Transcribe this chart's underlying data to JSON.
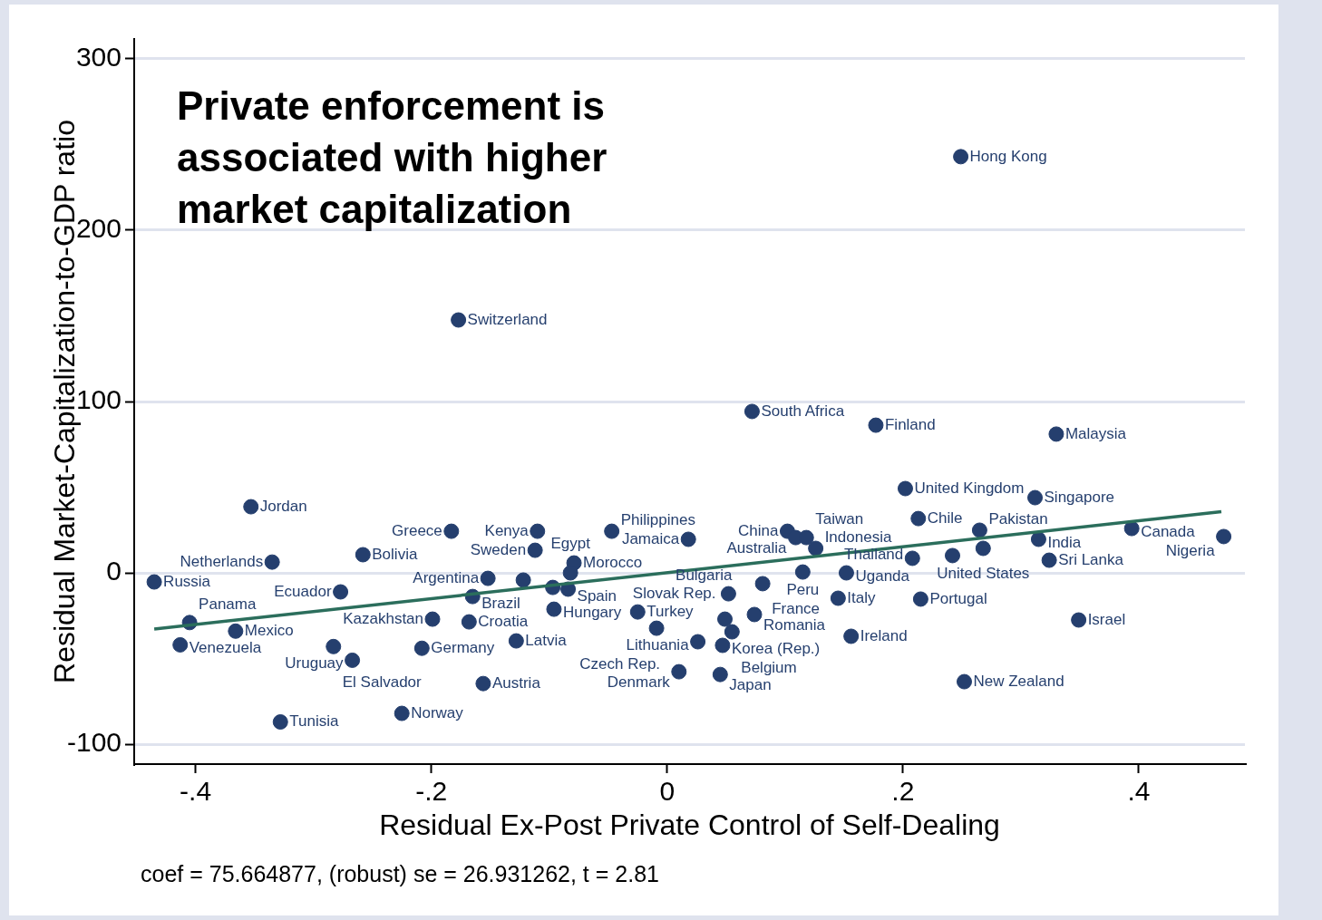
{
  "chart_data": {
    "type": "scatter",
    "title": "Private enforcement is associated with higher market capitalization",
    "xlabel": "Residual Ex-Post Private Control of Self-Dealing",
    "ylabel": "Residual Market-Capitalization-to-GDP ratio",
    "xlim": [
      -0.452,
      0.49
    ],
    "ylim": [
      -111.6,
      311.6
    ],
    "xticks": [
      {
        "value": -0.4,
        "label": "-.4"
      },
      {
        "value": -0.2,
        "label": "-.2"
      },
      0,
      {
        "value": 0.2,
        "label": ".2"
      },
      {
        "value": 0.4,
        "label": ".4"
      }
    ],
    "yticks": [
      -100,
      0,
      100,
      200,
      300
    ],
    "grid": "y",
    "legend": false,
    "series": [
      {
        "type": "scatter",
        "marker": "circle",
        "color": "#253f6e",
        "x": [
          -0.435,
          -0.353,
          -0.335,
          -0.258,
          -0.277,
          -0.405,
          -0.366,
          -0.413,
          -0.283,
          -0.267,
          -0.208,
          -0.328,
          -0.225,
          -0.183,
          -0.177,
          -0.11,
          -0.047,
          -0.112,
          -0.079,
          -0.082,
          -0.084,
          -0.152,
          -0.122,
          -0.097,
          -0.165,
          -0.199,
          -0.168,
          -0.128,
          -0.156,
          -0.096,
          -0.025,
          -0.009,
          0.018,
          0.102,
          0.109,
          0.118,
          0.126,
          0.115,
          0.152,
          0.081,
          0.052,
          0.145,
          0.215,
          0.074,
          0.049,
          0.055,
          0.026,
          0.047,
          0.156,
          0.01,
          0.045,
          0.072,
          0.177,
          0.249,
          0.33,
          0.202,
          0.312,
          0.213,
          0.265,
          0.315,
          0.268,
          0.208,
          0.242,
          0.324,
          0.394,
          0.472,
          0.349,
          0.252
        ],
        "values": [
          -5.3,
          38.6,
          6.3,
          10.6,
          -11.1,
          -29,
          -34,
          -42,
          -43,
          -51,
          -44,
          -87,
          -82,
          24.3,
          147.6,
          24.3,
          24.3,
          13.2,
          5.8,
          0,
          -9.5,
          -3.2,
          -4.2,
          -8.5,
          -13.8,
          -27,
          -28.6,
          -39.7,
          -64.6,
          -21.2,
          -22.8,
          -32.3,
          19.6,
          24.3,
          20.6,
          20.6,
          14.3,
          0.5,
          0,
          -6.3,
          -12.2,
          -14.8,
          -15.3,
          -24.3,
          -27,
          -34.4,
          -40.2,
          -42.3,
          -37,
          -57.7,
          -59.3,
          94.2,
          86.2,
          242.9,
          81,
          49.2,
          43.9,
          31.7,
          24.9,
          19.6,
          14.3,
          8.5,
          10.1,
          7.4,
          25.9,
          21.2,
          -27.5,
          -63.5
        ]
      },
      {
        "type": "line",
        "color": "#2b6e5c",
        "x": [
          -0.435,
          0.47
        ],
        "values": [
          -32.8,
          35.7
        ]
      }
    ],
    "annotations": [
      {
        "text": "Russia",
        "x": -0.435,
        "y": -5.3
      },
      {
        "text": "Jordan",
        "x": -0.353,
        "y": 38.6
      },
      {
        "text": "Netherlands",
        "x": -0.335,
        "y": 6.3
      },
      {
        "text": "Bolivia",
        "x": -0.258,
        "y": 10.6
      },
      {
        "text": "Ecuador",
        "x": -0.277,
        "y": -11.1
      },
      {
        "text": "Panama",
        "x": -0.405,
        "y": -29
      },
      {
        "text": "Mexico",
        "x": -0.366,
        "y": -34
      },
      {
        "text": "Venezuela",
        "x": -0.413,
        "y": -42
      },
      {
        "text": "El Salvador",
        "x": -0.283,
        "y": -43
      },
      {
        "text": "Uruguay",
        "x": -0.267,
        "y": -51
      },
      {
        "text": "Germany",
        "x": -0.208,
        "y": -44
      },
      {
        "text": "Tunisia",
        "x": -0.328,
        "y": -87
      },
      {
        "text": "Norway",
        "x": -0.225,
        "y": -82
      },
      {
        "text": "Greece",
        "x": -0.183,
        "y": 24.3
      },
      {
        "text": "Switzerland",
        "x": -0.177,
        "y": 147.6
      },
      {
        "text": "Kenya",
        "x": -0.11,
        "y": 24.3
      },
      {
        "text": "Philippines",
        "x": -0.047,
        "y": 24.3
      },
      {
        "text": "Sweden",
        "x": -0.112,
        "y": 13.2
      },
      {
        "text": "Morocco",
        "x": -0.079,
        "y": 5.8
      },
      {
        "text": "Egypt",
        "x": -0.082,
        "y": 0
      },
      {
        "text": "Spain",
        "x": -0.084,
        "y": -9.5
      },
      {
        "text": "Argentina",
        "x": -0.152,
        "y": -3.2
      },
      {
        "text": "Brazil",
        "x": -0.165,
        "y": -13.8
      },
      {
        "text": "Kazakhstan",
        "x": -0.199,
        "y": -27
      },
      {
        "text": "Croatia",
        "x": -0.168,
        "y": -28.6
      },
      {
        "text": "Latvia",
        "x": -0.128,
        "y": -39.7
      },
      {
        "text": "Austria",
        "x": -0.156,
        "y": -64.6
      },
      {
        "text": "Hungary",
        "x": -0.096,
        "y": -21.2
      },
      {
        "text": "Turkey",
        "x": -0.025,
        "y": -22.8
      },
      {
        "text": "Czech Rep.",
        "x": -0.009,
        "y": -32.3
      },
      {
        "text": "Jamaica",
        "x": 0.018,
        "y": 19.6
      },
      {
        "text": "China",
        "x": 0.102,
        "y": 24.3
      },
      {
        "text": "Australia",
        "x": 0.109,
        "y": 20.6
      },
      {
        "text": "Taiwan",
        "x": 0.118,
        "y": 20.6
      },
      {
        "text": "Indonesia",
        "x": 0.126,
        "y": 14.3
      },
      {
        "text": "Peru",
        "x": 0.115,
        "y": 0.5
      },
      {
        "text": "Uganda",
        "x": 0.152,
        "y": 0
      },
      {
        "text": "France",
        "x": 0.081,
        "y": -6.3
      },
      {
        "text": "Bulgaria",
        "x": 0.052,
        "y": -12.2
      },
      {
        "text": "Italy",
        "x": 0.145,
        "y": -14.8
      },
      {
        "text": "Portugal",
        "x": 0.215,
        "y": -15.3
      },
      {
        "text": "Romania",
        "x": 0.074,
        "y": -24.3
      },
      {
        "text": "Slovak Rep.",
        "x": 0.049,
        "y": -27
      },
      {
        "text": "Belgium",
        "x": 0.055,
        "y": -34.4
      },
      {
        "text": "Lithuania",
        "x": 0.026,
        "y": -40.2
      },
      {
        "text": "Korea (Rep.)",
        "x": 0.047,
        "y": -42.3
      },
      {
        "text": "Ireland",
        "x": 0.156,
        "y": -37
      },
      {
        "text": "Denmark",
        "x": 0.01,
        "y": -57.7
      },
      {
        "text": "Japan",
        "x": 0.045,
        "y": -59.3
      },
      {
        "text": "South Africa",
        "x": 0.072,
        "y": 94.2
      },
      {
        "text": "Finland",
        "x": 0.177,
        "y": 86.2
      },
      {
        "text": "Hong Kong",
        "x": 0.249,
        "y": 242.9
      },
      {
        "text": "Malaysia",
        "x": 0.33,
        "y": 81
      },
      {
        "text": "United Kingdom",
        "x": 0.202,
        "y": 49.2
      },
      {
        "text": "Singapore",
        "x": 0.312,
        "y": 43.9
      },
      {
        "text": "Chile",
        "x": 0.213,
        "y": 31.7
      },
      {
        "text": "Pakistan",
        "x": 0.265,
        "y": 24.9
      },
      {
        "text": "India",
        "x": 0.315,
        "y": 19.6
      },
      {
        "text": "United States",
        "x": 0.268,
        "y": 14.3
      },
      {
        "text": "Thailand",
        "x": 0.208,
        "y": 8.5
      },
      {
        "text": "Sri Lanka",
        "x": 0.324,
        "y": 7.4
      },
      {
        "text": "Canada",
        "x": 0.394,
        "y": 25.9
      },
      {
        "text": "Nigeria",
        "x": 0.472,
        "y": 21.2
      },
      {
        "text": "Israel",
        "x": 0.349,
        "y": -27.5
      },
      {
        "text": "New Zealand",
        "x": 0.252,
        "y": -63.5
      },
      "coef = 75.664877, (robust) se = 26.931262, t = 2.81"
    ]
  }
}
